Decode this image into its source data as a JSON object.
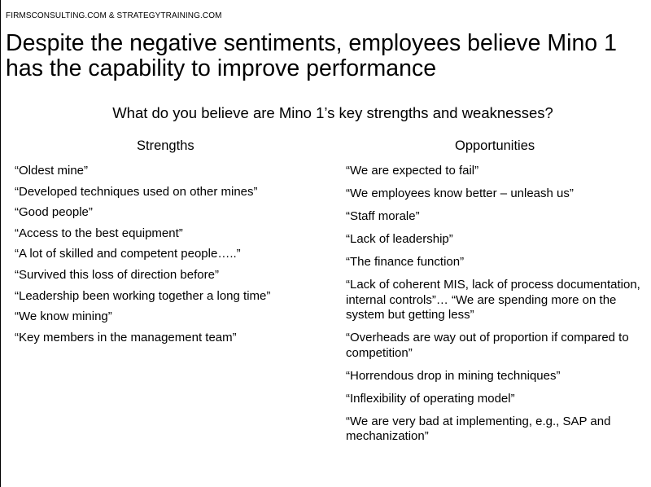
{
  "header_note": "FIRMSCONSULTING.COM & STRATEGYTRAINING.COM",
  "title": "Despite the negative sentiments, employees believe Mino 1 has the capability to improve performance",
  "question": "What do you believe are Mino 1’s key strengths and weaknesses?",
  "strengths": {
    "heading": "Strengths",
    "items": [
      "“Oldest mine”",
      "“Developed techniques used on other mines”",
      "“Good people”",
      "“Access to the best equipment”",
      "“A lot of skilled and competent people…..”",
      "“Survived this loss of direction before”",
      "“Leadership been working together a long time”",
      "“We know mining”",
      "“Key members in the management team”"
    ]
  },
  "opportunities": {
    "heading": "Opportunities",
    "items": [
      "“We are expected to fail”",
      "“We employees know better – unleash us”",
      "“Staff morale”",
      "“Lack of leadership”",
      "“The finance function”",
      "“Lack of coherent MIS, lack of process documentation, internal controls”… “We are spending more on the system but getting less”",
      "“Overheads are way out of proportion if compared to competition”",
      "“Horrendous drop in mining techniques”",
      "“Inflexibility of operating model”",
      "“We are very bad at implementing, e.g., SAP and mechanization”"
    ]
  }
}
